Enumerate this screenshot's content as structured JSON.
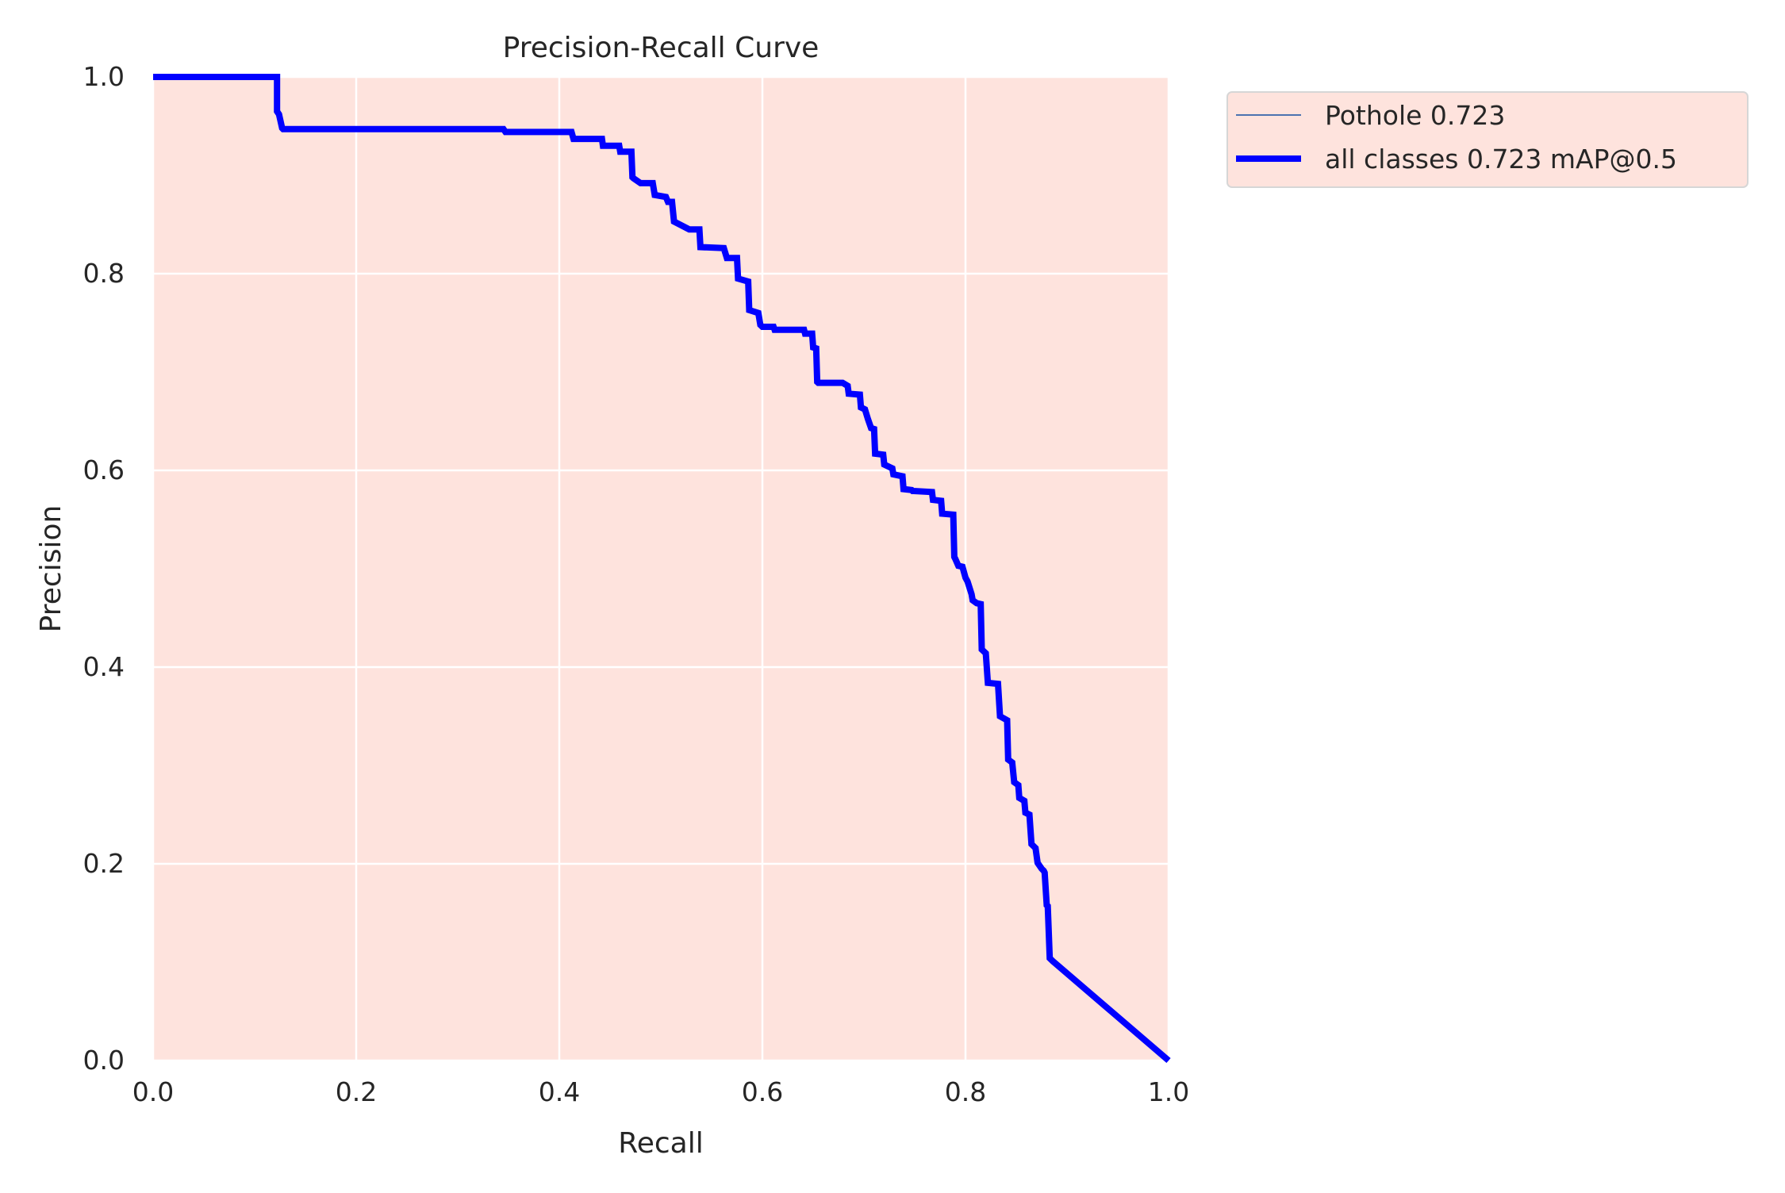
{
  "chart_data": {
    "type": "line",
    "title": "Precision-Recall Curve",
    "xlabel": "Recall",
    "ylabel": "Precision",
    "xlim": [
      0,
      1
    ],
    "ylim": [
      0,
      1
    ],
    "xticks": [
      "0.0",
      "0.2",
      "0.4",
      "0.6",
      "0.8",
      "1.0"
    ],
    "yticks": [
      "0.0",
      "0.2",
      "0.4",
      "0.6",
      "0.8",
      "1.0"
    ],
    "grid": true,
    "legend_position": "outside-top-right",
    "colors": {
      "plot_background": "#fee3dd",
      "grid": "#ffffff",
      "class_line": "#4c72b0",
      "all_line": "#0000ff"
    },
    "series": [
      {
        "name": "Pothole 0.723",
        "x": [
          0.0,
          0.122,
          0.122,
          0.124,
          0.127,
          0.128,
          0.345,
          0.347,
          0.412,
          0.414,
          0.442,
          0.443,
          0.459,
          0.46,
          0.471,
          0.472,
          0.473,
          0.48,
          0.492,
          0.494,
          0.505,
          0.507,
          0.511,
          0.513,
          0.528,
          0.538,
          0.539,
          0.562,
          0.565,
          0.575,
          0.576,
          0.586,
          0.587,
          0.596,
          0.598,
          0.6,
          0.611,
          0.612,
          0.641,
          0.642,
          0.649,
          0.65,
          0.653,
          0.654,
          0.655,
          0.679,
          0.684,
          0.685,
          0.696,
          0.697,
          0.701,
          0.704,
          0.707,
          0.71,
          0.711,
          0.719,
          0.72,
          0.728,
          0.729,
          0.738,
          0.739,
          0.747,
          0.748,
          0.749,
          0.767,
          0.768,
          0.776,
          0.777,
          0.788,
          0.789,
          0.79,
          0.793,
          0.797,
          0.8,
          0.802,
          0.806,
          0.807,
          0.811,
          0.815,
          0.816,
          0.82,
          0.822,
          0.832,
          0.834,
          0.841,
          0.842,
          0.846,
          0.848,
          0.852,
          0.853,
          0.858,
          0.859,
          0.863,
          0.865,
          0.869,
          0.871,
          0.875,
          0.877,
          0.878,
          0.88,
          0.881,
          0.883,
          0.886,
          1.0
        ],
        "y": [
          1.0,
          1.0,
          0.965,
          0.962,
          0.948,
          0.947,
          0.947,
          0.944,
          0.944,
          0.937,
          0.937,
          0.93,
          0.93,
          0.924,
          0.924,
          0.898,
          0.897,
          0.892,
          0.892,
          0.88,
          0.878,
          0.873,
          0.873,
          0.853,
          0.845,
          0.845,
          0.827,
          0.826,
          0.816,
          0.816,
          0.795,
          0.792,
          0.763,
          0.76,
          0.748,
          0.746,
          0.746,
          0.743,
          0.743,
          0.739,
          0.739,
          0.725,
          0.724,
          0.69,
          0.689,
          0.689,
          0.686,
          0.678,
          0.677,
          0.664,
          0.662,
          0.652,
          0.643,
          0.642,
          0.617,
          0.616,
          0.606,
          0.602,
          0.596,
          0.594,
          0.581,
          0.58,
          0.579,
          0.579,
          0.578,
          0.57,
          0.569,
          0.556,
          0.555,
          0.512,
          0.51,
          0.503,
          0.502,
          0.491,
          0.487,
          0.474,
          0.468,
          0.465,
          0.464,
          0.418,
          0.414,
          0.384,
          0.383,
          0.35,
          0.346,
          0.306,
          0.303,
          0.283,
          0.28,
          0.267,
          0.264,
          0.252,
          0.25,
          0.22,
          0.216,
          0.201,
          0.195,
          0.193,
          0.191,
          0.158,
          0.157,
          0.104,
          0.101,
          0.0
        ]
      },
      {
        "name": "all classes 0.723 mAP@0.5",
        "x": [
          0.0,
          0.122,
          0.122,
          0.124,
          0.127,
          0.128,
          0.345,
          0.347,
          0.412,
          0.414,
          0.442,
          0.443,
          0.459,
          0.46,
          0.471,
          0.472,
          0.473,
          0.48,
          0.492,
          0.494,
          0.505,
          0.507,
          0.511,
          0.513,
          0.528,
          0.538,
          0.539,
          0.562,
          0.565,
          0.575,
          0.576,
          0.586,
          0.587,
          0.596,
          0.598,
          0.6,
          0.611,
          0.612,
          0.641,
          0.642,
          0.649,
          0.65,
          0.653,
          0.654,
          0.655,
          0.679,
          0.684,
          0.685,
          0.696,
          0.697,
          0.701,
          0.704,
          0.707,
          0.71,
          0.711,
          0.719,
          0.72,
          0.728,
          0.729,
          0.738,
          0.739,
          0.747,
          0.748,
          0.749,
          0.767,
          0.768,
          0.776,
          0.777,
          0.788,
          0.789,
          0.79,
          0.793,
          0.797,
          0.8,
          0.802,
          0.806,
          0.807,
          0.811,
          0.815,
          0.816,
          0.82,
          0.822,
          0.832,
          0.834,
          0.841,
          0.842,
          0.846,
          0.848,
          0.852,
          0.853,
          0.858,
          0.859,
          0.863,
          0.865,
          0.869,
          0.871,
          0.875,
          0.877,
          0.878,
          0.88,
          0.881,
          0.883,
          0.886,
          1.0
        ],
        "y": [
          1.0,
          1.0,
          0.965,
          0.962,
          0.948,
          0.947,
          0.947,
          0.944,
          0.944,
          0.937,
          0.937,
          0.93,
          0.93,
          0.924,
          0.924,
          0.898,
          0.897,
          0.892,
          0.892,
          0.88,
          0.878,
          0.873,
          0.873,
          0.853,
          0.845,
          0.845,
          0.827,
          0.826,
          0.816,
          0.816,
          0.795,
          0.792,
          0.763,
          0.76,
          0.748,
          0.746,
          0.746,
          0.743,
          0.743,
          0.739,
          0.739,
          0.725,
          0.724,
          0.69,
          0.689,
          0.689,
          0.686,
          0.678,
          0.677,
          0.664,
          0.662,
          0.652,
          0.643,
          0.642,
          0.617,
          0.616,
          0.606,
          0.602,
          0.596,
          0.594,
          0.581,
          0.58,
          0.579,
          0.579,
          0.578,
          0.57,
          0.569,
          0.556,
          0.555,
          0.512,
          0.51,
          0.503,
          0.502,
          0.491,
          0.487,
          0.474,
          0.468,
          0.465,
          0.464,
          0.418,
          0.414,
          0.384,
          0.383,
          0.35,
          0.346,
          0.306,
          0.303,
          0.283,
          0.28,
          0.267,
          0.264,
          0.252,
          0.25,
          0.22,
          0.216,
          0.201,
          0.195,
          0.193,
          0.191,
          0.158,
          0.157,
          0.104,
          0.101,
          0.0
        ]
      }
    ]
  }
}
